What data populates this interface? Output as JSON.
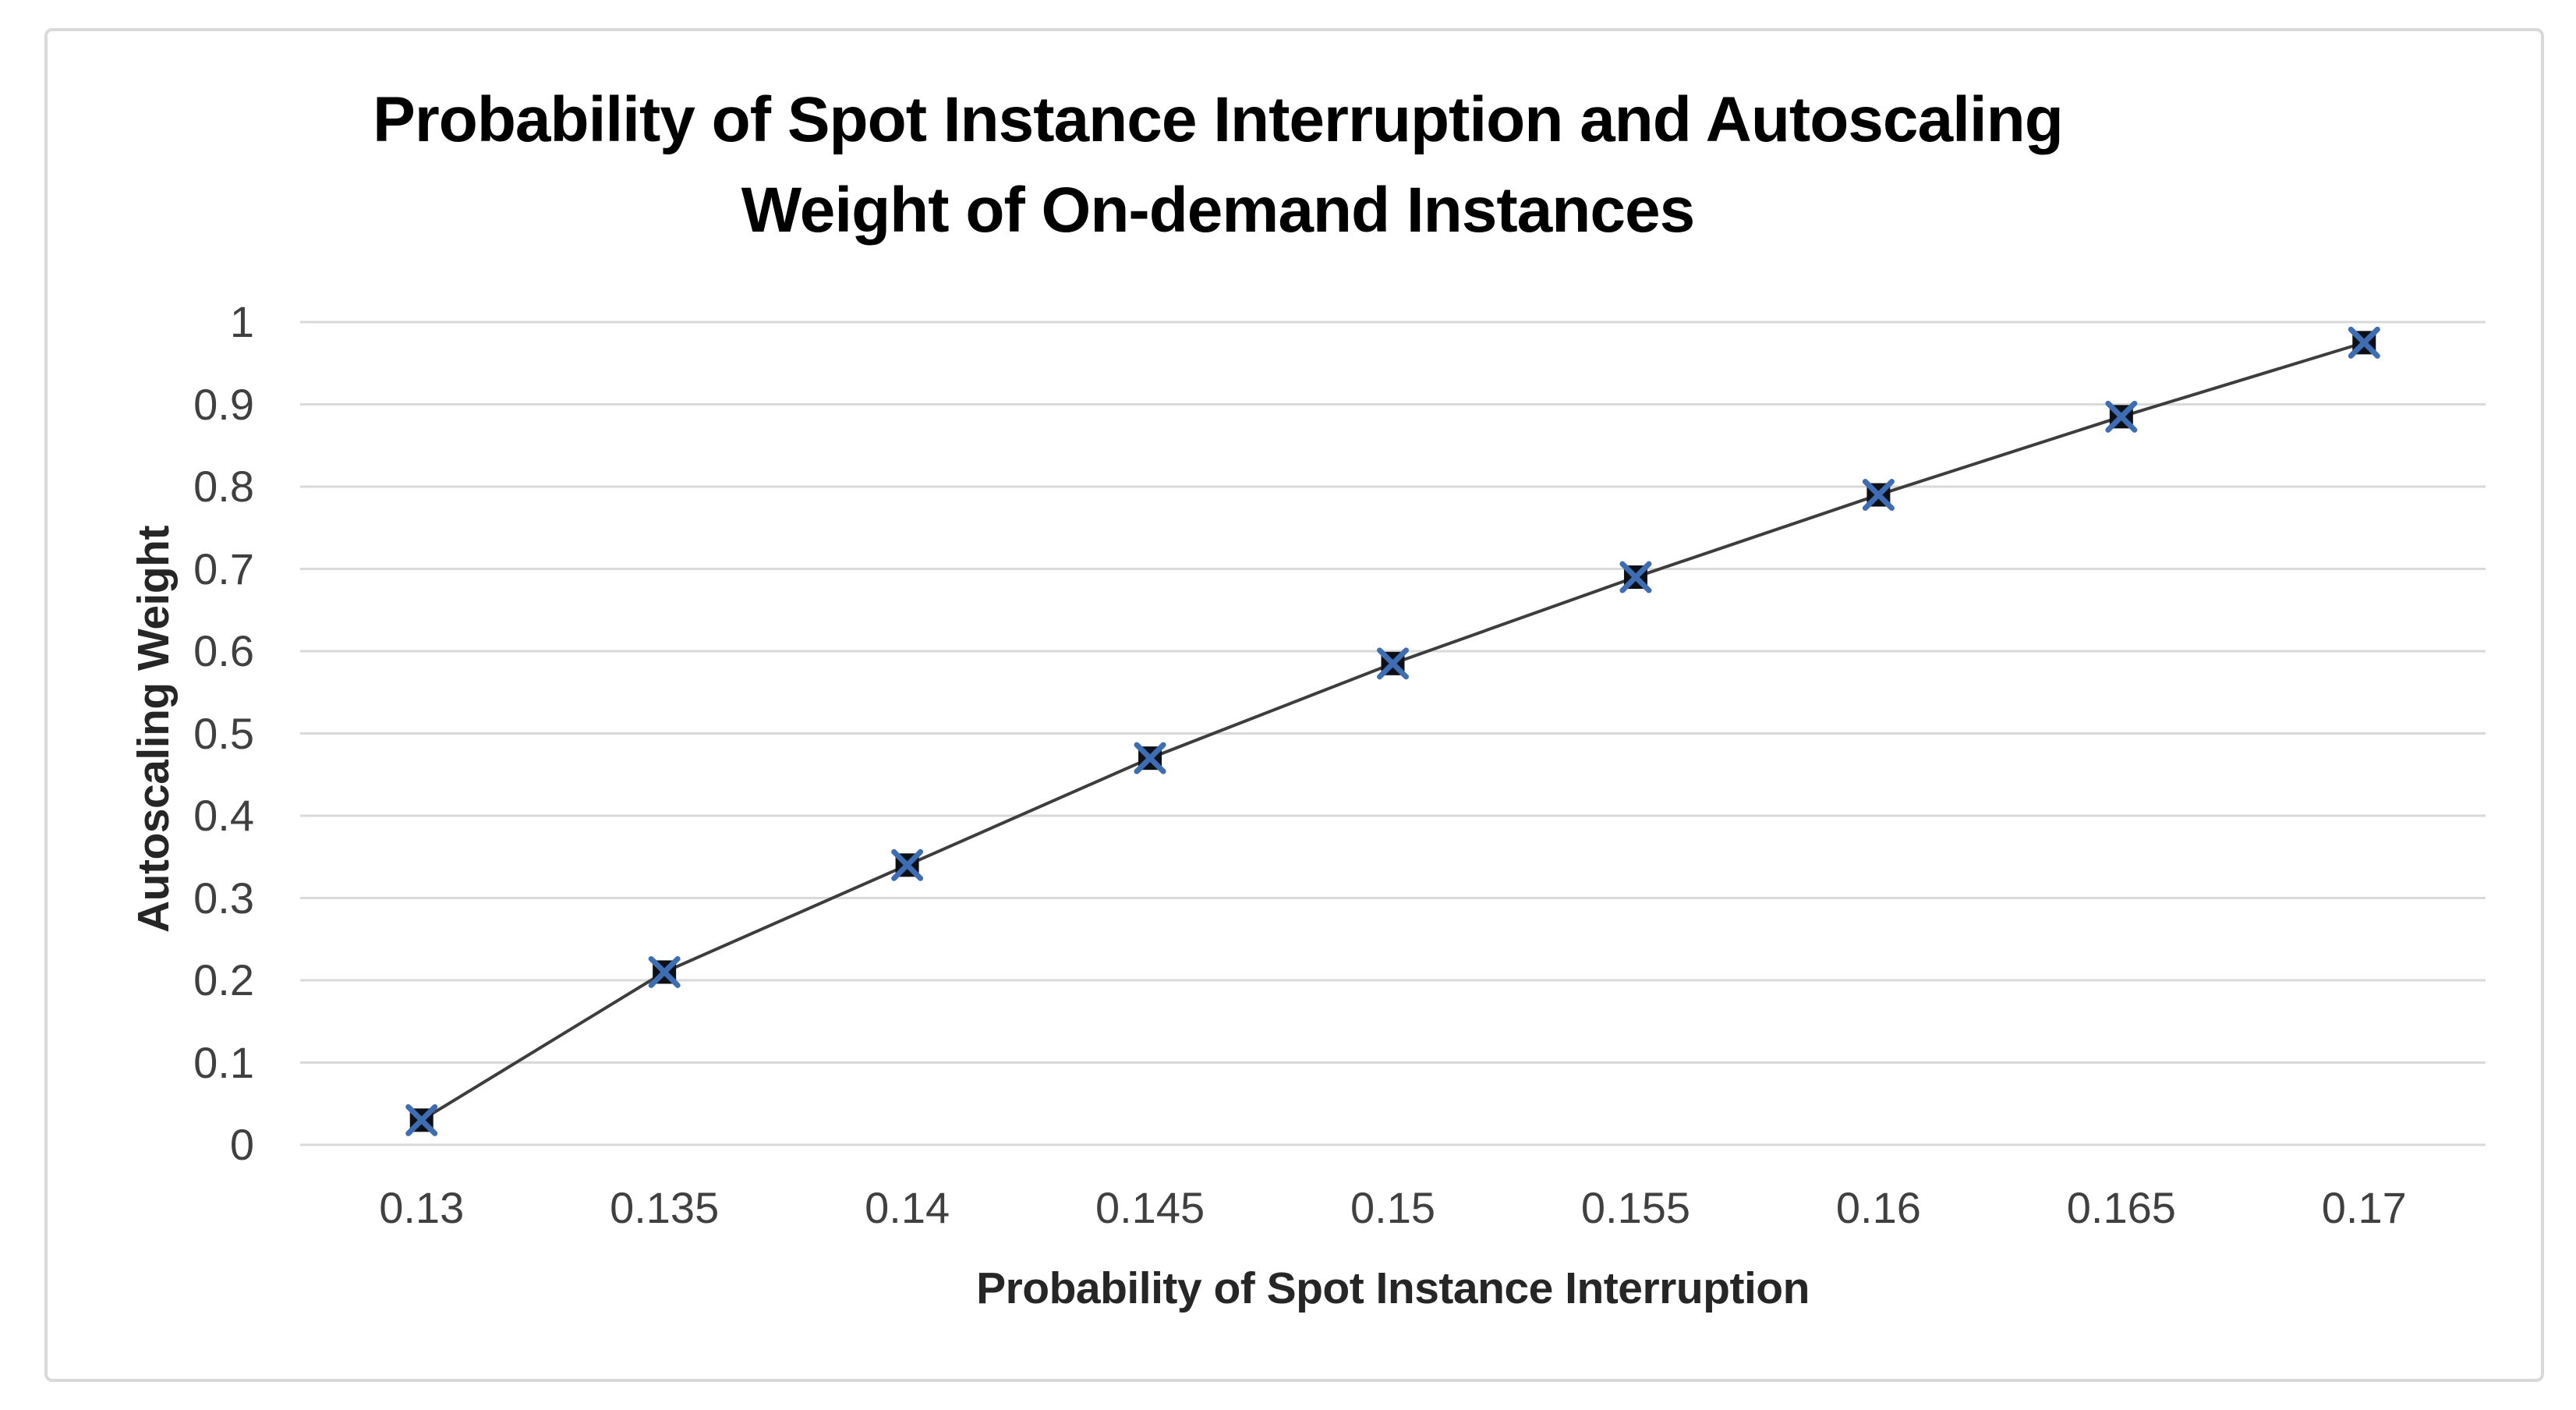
{
  "chart_data": {
    "type": "line",
    "title_line1": "Probability of Spot Instance Interruption and Autoscaling",
    "title_line2": "Weight of On-demand Instances",
    "xlabel": "Probability of Spot Instance Interruption",
    "ylabel": "Autoscaling Weight",
    "categories": [
      "0.13",
      "0.135",
      "0.14",
      "0.145",
      "0.15",
      "0.155",
      "0.16",
      "0.165",
      "0.17"
    ],
    "values": [
      0.03,
      0.21,
      0.34,
      0.47,
      0.585,
      0.69,
      0.79,
      0.885,
      0.975
    ],
    "series_count": 1,
    "y_ticks": [
      0,
      0.1,
      0.2,
      0.3,
      0.4,
      0.5,
      0.6,
      0.7,
      0.8,
      0.9,
      1
    ],
    "y_tick_labels": [
      "0",
      "0.1",
      "0.2",
      "0.3",
      "0.4",
      "0.5",
      "0.6",
      "0.7",
      "0.8",
      "0.9",
      "1"
    ],
    "ylim": [
      0,
      1
    ],
    "grid": true,
    "legend_position": "none",
    "marker_style": "x-on-square",
    "colors": {
      "line": "#3d3d3d",
      "marker_fill": "#0c1118",
      "marker_x": "#3e6db3",
      "gridline": "#d9d9d9",
      "frame_border": "#d9d9d9",
      "tick_text": "#404040",
      "title_text": "#000000"
    }
  }
}
